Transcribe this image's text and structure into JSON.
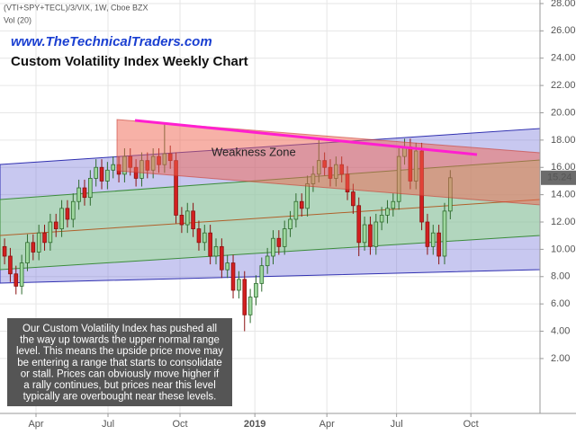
{
  "header": {
    "symbol": "(VTI+SPY+TECL)/3/VIX, 1W, Cboe BZX",
    "volume": "Vol (20)",
    "website": "www.TheTechnicalTraders.com"
  },
  "annotations": {
    "zone_label": "Weakness Zone",
    "note": [
      "Our Custom Volatility Index has pushed all",
      "the way up towards the upper normal range",
      "level.  This means the upside price move may",
      "be entering a range that starts to consolidate",
      "or stall.  Prices can obviously move higher if",
      "a rally continues, but prices near this level",
      "typically are overbought near these levels."
    ]
  },
  "chart_data": {
    "type": "candlestick",
    "title": "Custom Volatility Index Weekly Chart",
    "up_color": "#9fd89f",
    "down_color": "#d32020",
    "grid": true,
    "xlim": [
      -0.8,
      93.7
    ],
    "xticks": [
      {
        "value": 5.5,
        "label": "Apr"
      },
      {
        "value": 18.1,
        "label": "Jul"
      },
      {
        "value": 30.7,
        "label": "Oct"
      },
      {
        "value": 43.8,
        "label": "2019"
      },
      {
        "value": 56.4,
        "label": "Apr"
      },
      {
        "value": 68.6,
        "label": "Jul"
      },
      {
        "value": 81.6,
        "label": "Oct"
      }
    ],
    "ylim": [
      -2.02,
      28.26
    ],
    "yticks": [
      {
        "value": 2,
        "label": "2.00"
      },
      {
        "value": 4,
        "label": "4.00"
      },
      {
        "value": 6,
        "label": "6.00"
      },
      {
        "value": 8,
        "label": "8.00"
      },
      {
        "value": 10,
        "label": "10.00"
      },
      {
        "value": 12,
        "label": "12.00"
      },
      {
        "value": 14,
        "label": "14.00"
      },
      {
        "value": 16,
        "label": "16.00"
      },
      {
        "value": 18,
        "label": "18.00"
      },
      {
        "value": 20,
        "label": "20.00"
      },
      {
        "value": 22,
        "label": "22.00"
      },
      {
        "value": 24,
        "label": "24.00"
      },
      {
        "value": 26,
        "label": "26.00"
      },
      {
        "value": 28,
        "label": "28.00"
      }
    ],
    "open": [
      10.2,
      9.5,
      8.2,
      7.3,
      9.0,
      10.5,
      9.8,
      11.2,
      10.5,
      12.0,
      11.5,
      13.0,
      12.2,
      13.5,
      14.5,
      13.8,
      15.2,
      16.0,
      15.0,
      15.8,
      16.2,
      15.5,
      16.8,
      16.0,
      15.2,
      16.5,
      15.8,
      16.8,
      16.2,
      17.0,
      16.5,
      12.5,
      11.8,
      12.8,
      11.5,
      10.5,
      11.2,
      9.5,
      10.2,
      8.5,
      9.0,
      7.0,
      7.8,
      5.2,
      6.5,
      7.5,
      8.8,
      9.5,
      10.8,
      10.2,
      11.5,
      12.2,
      13.5,
      13.0,
      14.8,
      15.5,
      16.5,
      16.0,
      15.2,
      16.2,
      15.5,
      14.2,
      13.2,
      10.5,
      11.8,
      10.2,
      12.0,
      12.5,
      13.0,
      13.5,
      16.8,
      17.5,
      15.0,
      17.2,
      12.0,
      10.2,
      11.2,
      9.5,
      12.8
    ],
    "high": [
      10.8,
      10.1,
      8.8,
      9.6,
      11.1,
      11.1,
      11.8,
      11.8,
      12.6,
      12.6,
      13.6,
      13.6,
      14.1,
      15.1,
      15.1,
      15.8,
      16.6,
      16.6,
      16.4,
      16.8,
      16.8,
      17.4,
      17.4,
      16.6,
      17.1,
      17.1,
      17.4,
      17.4,
      19.3,
      17.6,
      17.1,
      13.1,
      13.4,
      13.4,
      12.1,
      11.8,
      11.8,
      10.8,
      10.8,
      9.6,
      9.6,
      8.4,
      8.4,
      7.1,
      8.1,
      9.4,
      10.1,
      11.4,
      11.4,
      12.1,
      12.8,
      14.1,
      14.1,
      15.4,
      16.1,
      18.0,
      17.1,
      16.6,
      16.8,
      16.8,
      16.1,
      14.8,
      13.8,
      12.4,
      12.4,
      12.6,
      13.1,
      13.6,
      14.1,
      17.4,
      18.1,
      18.1,
      17.8,
      17.8,
      12.6,
      11.8,
      11.8,
      13.4,
      15.8
    ],
    "low": [
      8.9,
      7.6,
      6.7,
      6.7,
      8.4,
      9.2,
      9.2,
      9.9,
      9.9,
      10.9,
      10.9,
      11.6,
      11.6,
      12.9,
      13.2,
      13.2,
      14.6,
      14.4,
      14.4,
      15.2,
      14.9,
      14.9,
      15.4,
      14.6,
      14.6,
      15.2,
      15.2,
      15.6,
      15.6,
      15.9,
      11.9,
      11.2,
      11.2,
      10.9,
      9.9,
      9.9,
      8.9,
      8.9,
      7.9,
      7.9,
      6.4,
      6.4,
      4.0,
      4.6,
      5.9,
      6.9,
      8.2,
      8.9,
      9.6,
      9.6,
      10.9,
      11.6,
      12.4,
      12.4,
      14.2,
      14.9,
      15.4,
      14.6,
      14.6,
      14.9,
      13.6,
      12.6,
      9.5,
      9.9,
      9.6,
      9.6,
      11.4,
      11.9,
      12.4,
      12.9,
      16.2,
      14.4,
      14.4,
      11.4,
      9.6,
      9.6,
      8.9,
      8.9,
      12.2
    ],
    "close": [
      9.5,
      8.2,
      7.3,
      9.0,
      10.5,
      9.8,
      11.2,
      10.5,
      12.0,
      11.5,
      13.0,
      12.2,
      13.5,
      14.5,
      13.8,
      15.2,
      16.0,
      15.0,
      15.8,
      16.2,
      15.5,
      16.8,
      16.0,
      15.2,
      16.5,
      15.8,
      16.8,
      16.2,
      17.0,
      16.5,
      12.5,
      11.8,
      12.8,
      11.5,
      10.5,
      11.2,
      9.5,
      10.2,
      8.5,
      9.0,
      7.0,
      7.8,
      5.2,
      6.5,
      7.5,
      8.8,
      9.5,
      10.8,
      10.2,
      11.5,
      12.2,
      13.5,
      13.0,
      14.8,
      15.5,
      16.5,
      16.0,
      15.2,
      16.2,
      15.5,
      14.2,
      13.2,
      10.5,
      11.8,
      10.2,
      12.0,
      12.5,
      13.0,
      13.5,
      16.8,
      17.5,
      15.0,
      17.2,
      12.0,
      10.2,
      11.2,
      9.5,
      12.8,
      15.24
    ]
  }
}
